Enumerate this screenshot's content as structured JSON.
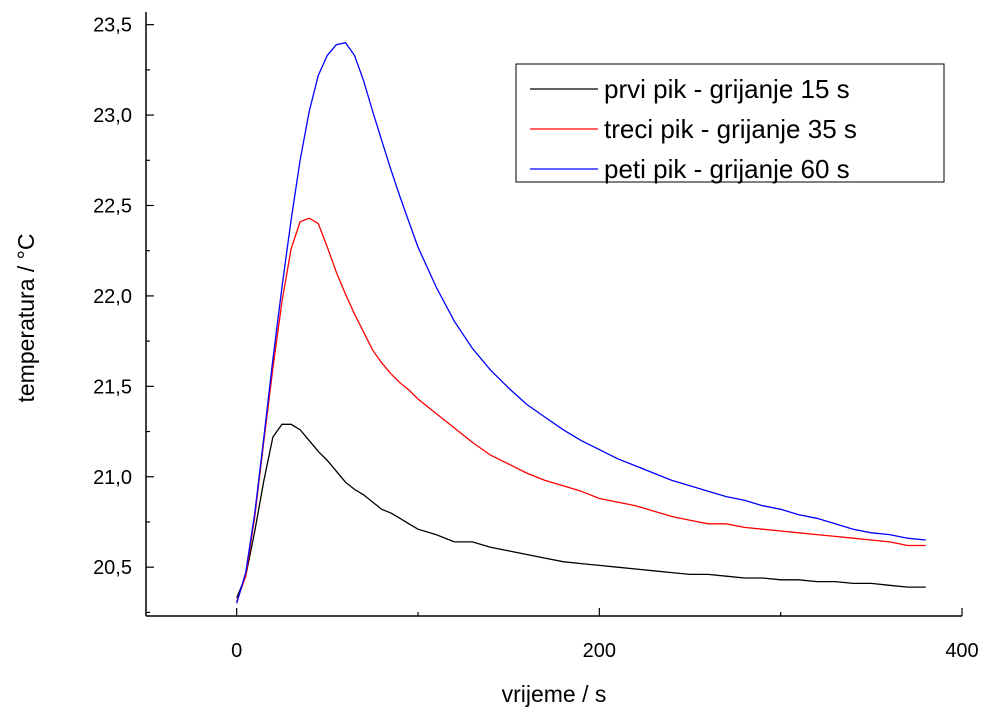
{
  "chart_data": {
    "type": "line",
    "xlabel": "vrijeme / s",
    "ylabel": "temperatura / °C",
    "xlim": [
      -50,
      400
    ],
    "ylim": [
      20.23,
      23.57
    ],
    "x_ticks": [
      0,
      200,
      400
    ],
    "x_tick_labels": [
      "0",
      "200",
      "400"
    ],
    "y_ticks": [
      20.5,
      21.0,
      21.5,
      22.0,
      22.5,
      23.0,
      23.5
    ],
    "y_tick_labels": [
      "20,5",
      "21,0",
      "21,5",
      "22,0",
      "22,5",
      "23,0",
      "23,5"
    ],
    "grid": false,
    "legend_position": "top-right",
    "series": [
      {
        "name": "prvi pik - grijanje 15 s",
        "color": "#000000",
        "points": [
          [
            0,
            20.33
          ],
          [
            5,
            20.45
          ],
          [
            10,
            20.7
          ],
          [
            15,
            20.98
          ],
          [
            20,
            21.22
          ],
          [
            25,
            21.29
          ],
          [
            30,
            21.29
          ],
          [
            35,
            21.26
          ],
          [
            40,
            21.2
          ],
          [
            45,
            21.14
          ],
          [
            50,
            21.09
          ],
          [
            55,
            21.03
          ],
          [
            60,
            20.97
          ],
          [
            65,
            20.93
          ],
          [
            70,
            20.9
          ],
          [
            75,
            20.86
          ],
          [
            80,
            20.82
          ],
          [
            85,
            20.8
          ],
          [
            90,
            20.77
          ],
          [
            95,
            20.74
          ],
          [
            100,
            20.71
          ],
          [
            110,
            20.68
          ],
          [
            120,
            20.64
          ],
          [
            130,
            20.64
          ],
          [
            140,
            20.61
          ],
          [
            150,
            20.59
          ],
          [
            160,
            20.57
          ],
          [
            170,
            20.55
          ],
          [
            180,
            20.53
          ],
          [
            190,
            20.52
          ],
          [
            200,
            20.51
          ],
          [
            210,
            20.5
          ],
          [
            220,
            20.49
          ],
          [
            230,
            20.48
          ],
          [
            240,
            20.47
          ],
          [
            250,
            20.46
          ],
          [
            260,
            20.46
          ],
          [
            270,
            20.45
          ],
          [
            280,
            20.44
          ],
          [
            290,
            20.44
          ],
          [
            300,
            20.43
          ],
          [
            310,
            20.43
          ],
          [
            320,
            20.42
          ],
          [
            330,
            20.42
          ],
          [
            340,
            20.41
          ],
          [
            350,
            20.41
          ],
          [
            360,
            20.4
          ],
          [
            370,
            20.39
          ],
          [
            380,
            20.39
          ]
        ]
      },
      {
        "name": "treci pik - grijanje 35 s",
        "color": "#ff0000",
        "points": [
          [
            0,
            20.31
          ],
          [
            5,
            20.45
          ],
          [
            10,
            20.78
          ],
          [
            15,
            21.2
          ],
          [
            20,
            21.6
          ],
          [
            25,
            21.97
          ],
          [
            30,
            22.26
          ],
          [
            35,
            22.41
          ],
          [
            40,
            22.43
          ],
          [
            45,
            22.4
          ],
          [
            50,
            22.27
          ],
          [
            55,
            22.13
          ],
          [
            60,
            22.01
          ],
          [
            65,
            21.9
          ],
          [
            70,
            21.8
          ],
          [
            75,
            21.7
          ],
          [
            80,
            21.63
          ],
          [
            85,
            21.57
          ],
          [
            90,
            21.52
          ],
          [
            95,
            21.48
          ],
          [
            100,
            21.43
          ],
          [
            110,
            21.35
          ],
          [
            120,
            21.27
          ],
          [
            130,
            21.19
          ],
          [
            140,
            21.12
          ],
          [
            150,
            21.07
          ],
          [
            160,
            21.02
          ],
          [
            170,
            20.98
          ],
          [
            180,
            20.95
          ],
          [
            190,
            20.92
          ],
          [
            200,
            20.88
          ],
          [
            210,
            20.86
          ],
          [
            220,
            20.84
          ],
          [
            230,
            20.81
          ],
          [
            240,
            20.78
          ],
          [
            250,
            20.76
          ],
          [
            260,
            20.74
          ],
          [
            270,
            20.74
          ],
          [
            280,
            20.72
          ],
          [
            290,
            20.71
          ],
          [
            300,
            20.7
          ],
          [
            310,
            20.69
          ],
          [
            320,
            20.68
          ],
          [
            330,
            20.67
          ],
          [
            340,
            20.66
          ],
          [
            350,
            20.65
          ],
          [
            360,
            20.64
          ],
          [
            370,
            20.62
          ],
          [
            380,
            20.62
          ]
        ]
      },
      {
        "name": "peti pik - grijanje 60 s",
        "color": "#0000ff",
        "points": [
          [
            0,
            20.3
          ],
          [
            5,
            20.47
          ],
          [
            10,
            20.8
          ],
          [
            15,
            21.22
          ],
          [
            20,
            21.65
          ],
          [
            25,
            22.05
          ],
          [
            30,
            22.42
          ],
          [
            35,
            22.75
          ],
          [
            40,
            23.02
          ],
          [
            45,
            23.22
          ],
          [
            50,
            23.33
          ],
          [
            55,
            23.39
          ],
          [
            60,
            23.4
          ],
          [
            65,
            23.33
          ],
          [
            70,
            23.19
          ],
          [
            75,
            23.02
          ],
          [
            80,
            22.86
          ],
          [
            85,
            22.7
          ],
          [
            90,
            22.55
          ],
          [
            95,
            22.41
          ],
          [
            100,
            22.27
          ],
          [
            110,
            22.05
          ],
          [
            120,
            21.86
          ],
          [
            130,
            21.71
          ],
          [
            140,
            21.59
          ],
          [
            150,
            21.49
          ],
          [
            160,
            21.4
          ],
          [
            170,
            21.33
          ],
          [
            180,
            21.26
          ],
          [
            190,
            21.2
          ],
          [
            200,
            21.15
          ],
          [
            210,
            21.1
          ],
          [
            220,
            21.06
          ],
          [
            230,
            21.02
          ],
          [
            240,
            20.98
          ],
          [
            250,
            20.95
          ],
          [
            260,
            20.92
          ],
          [
            270,
            20.89
          ],
          [
            280,
            20.87
          ],
          [
            290,
            20.84
          ],
          [
            300,
            20.82
          ],
          [
            310,
            20.79
          ],
          [
            320,
            20.77
          ],
          [
            330,
            20.74
          ],
          [
            340,
            20.71
          ],
          [
            350,
            20.69
          ],
          [
            360,
            20.68
          ],
          [
            370,
            20.66
          ],
          [
            380,
            20.65
          ]
        ]
      }
    ]
  }
}
